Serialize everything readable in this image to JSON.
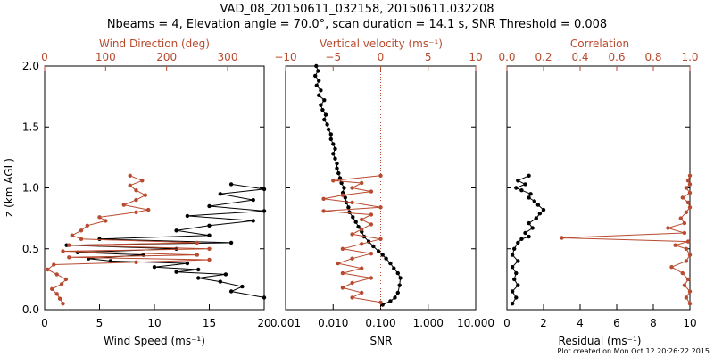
{
  "header": {
    "title_line1": "VAD_08_20150611_032158, 20150611.032208",
    "title_line2": "Nbeams = 4, Elevation angle = 70.0°, scan duration = 14.1 s, SNR Threshold = 0.008"
  },
  "footer": "Plot created on Mon Oct 12 20:26:22 2015",
  "colors": {
    "black": "#000000",
    "red": "#b84a2f"
  },
  "chart_data": [
    {
      "type": "line",
      "panel": "wind",
      "ylabel": "z (km AGL)",
      "ylim": [
        0,
        2
      ],
      "yticks": [
        "0.0",
        "0.5",
        "1.0",
        "1.5",
        "2.0"
      ],
      "xlabel_bottom": "Wind Speed (ms⁻¹)",
      "xlim_bottom": [
        0,
        20
      ],
      "xticks_bottom": [
        "0",
        "5",
        "10",
        "15",
        "20"
      ],
      "xlabel_top": "Wind Direction (deg)",
      "xlim_top": [
        0,
        360
      ],
      "xticks_top": [
        "0",
        "100",
        "200",
        "300"
      ],
      "series": [
        {
          "color": "black",
          "axis": "bottom",
          "points": [
            [
              20,
              0.1
            ],
            [
              17,
              0.15
            ],
            [
              18,
              0.19
            ],
            [
              16,
              0.23
            ],
            [
              14,
              0.26
            ],
            [
              16.5,
              0.29
            ],
            [
              12,
              0.31
            ],
            [
              14,
              0.33
            ],
            [
              10,
              0.35
            ],
            [
              13,
              0.38
            ],
            [
              6,
              0.4
            ],
            [
              4,
              0.42
            ],
            [
              9,
              0.45
            ],
            [
              3,
              0.47
            ],
            [
              12,
              0.5
            ],
            [
              2,
              0.53
            ],
            [
              17,
              0.55
            ],
            [
              5,
              0.58
            ],
            [
              15,
              0.61
            ],
            [
              12,
              0.65
            ],
            [
              15,
              0.69
            ],
            [
              19,
              0.73
            ],
            [
              13,
              0.77
            ],
            [
              20,
              0.81
            ],
            [
              15,
              0.85
            ],
            [
              19,
              0.9
            ],
            [
              16,
              0.95
            ],
            [
              20,
              0.99
            ],
            [
              17,
              1.03
            ]
          ]
        },
        {
          "color": "red",
          "axis": "top",
          "points": [
            [
              30,
              0.05
            ],
            [
              25,
              0.09
            ],
            [
              20,
              0.13
            ],
            [
              12,
              0.17
            ],
            [
              28,
              0.21
            ],
            [
              35,
              0.25
            ],
            [
              20,
              0.29
            ],
            [
              5,
              0.33
            ],
            [
              15,
              0.37
            ],
            [
              150,
              0.39
            ],
            [
              270,
              0.41
            ],
            [
              40,
              0.43
            ],
            [
              250,
              0.45
            ],
            [
              30,
              0.48
            ],
            [
              270,
              0.5
            ],
            [
              40,
              0.53
            ],
            [
              250,
              0.55
            ],
            [
              60,
              0.58
            ],
            [
              45,
              0.61
            ],
            [
              60,
              0.65
            ],
            [
              70,
              0.69
            ],
            [
              100,
              0.73
            ],
            [
              90,
              0.76
            ],
            [
              150,
              0.8
            ],
            [
              170,
              0.82
            ],
            [
              130,
              0.86
            ],
            [
              150,
              0.9
            ],
            [
              165,
              0.94
            ],
            [
              150,
              0.98
            ],
            [
              140,
              1.02
            ],
            [
              160,
              1.06
            ],
            [
              140,
              1.1
            ]
          ]
        }
      ]
    },
    {
      "type": "line",
      "panel": "snr_vertical",
      "ylim": [
        0,
        2
      ],
      "xlabel_bottom": "SNR",
      "xscale_bottom": "log",
      "xlim_bottom": [
        0.001,
        10
      ],
      "xticks_bottom": [
        "0.001",
        "0.010",
        "0.100",
        "1.000",
        "10.000"
      ],
      "xlabel_top": "Vertical velocity (ms⁻¹)",
      "xlim_top": [
        -10,
        10
      ],
      "xticks_top": [
        "−10",
        "−5",
        "0",
        "5",
        "10"
      ],
      "reference_line": {
        "axis": "top",
        "x": 0,
        "style": "dotted",
        "color": "red"
      },
      "series": [
        {
          "color": "black",
          "axis": "bottom",
          "points": [
            [
              0.11,
              0.04
            ],
            [
              0.16,
              0.07
            ],
            [
              0.2,
              0.1
            ],
            [
              0.23,
              0.14
            ],
            [
              0.25,
              0.2
            ],
            [
              0.26,
              0.26
            ],
            [
              0.23,
              0.3
            ],
            [
              0.19,
              0.34
            ],
            [
              0.16,
              0.38
            ],
            [
              0.13,
              0.42
            ],
            [
              0.11,
              0.45
            ],
            [
              0.09,
              0.48
            ],
            [
              0.07,
              0.52
            ],
            [
              0.056,
              0.56
            ],
            [
              0.045,
              0.6
            ],
            [
              0.04,
              0.64
            ],
            [
              0.034,
              0.68
            ],
            [
              0.03,
              0.72
            ],
            [
              0.026,
              0.76
            ],
            [
              0.022,
              0.8
            ],
            [
              0.021,
              0.84
            ],
            [
              0.019,
              0.88
            ],
            [
              0.018,
              0.92
            ],
            [
              0.016,
              0.96
            ],
            [
              0.017,
              1.0
            ],
            [
              0.015,
              1.04
            ],
            [
              0.014,
              1.08
            ],
            [
              0.013,
              1.12
            ],
            [
              0.012,
              1.16
            ],
            [
              0.012,
              1.2
            ],
            [
              0.011,
              1.24
            ],
            [
              0.01,
              1.28
            ],
            [
              0.011,
              1.32
            ],
            [
              0.01,
              1.36
            ],
            [
              0.009,
              1.4
            ],
            [
              0.009,
              1.44
            ],
            [
              0.008,
              1.48
            ],
            [
              0.0075,
              1.52
            ],
            [
              0.0065,
              1.56
            ],
            [
              0.007,
              1.6
            ],
            [
              0.006,
              1.64
            ],
            [
              0.0055,
              1.68
            ],
            [
              0.0065,
              1.72
            ],
            [
              0.005,
              1.76
            ],
            [
              0.0055,
              1.8
            ],
            [
              0.0045,
              1.84
            ],
            [
              0.005,
              1.88
            ],
            [
              0.0042,
              1.92
            ],
            [
              0.0048,
              1.96
            ],
            [
              0.0044,
              2.0
            ]
          ]
        },
        {
          "color": "red",
          "axis": "top",
          "points": [
            [
              0,
              0.06
            ],
            [
              -3,
              0.1
            ],
            [
              -2,
              0.14
            ],
            [
              -4,
              0.18
            ],
            [
              -3,
              0.22
            ],
            [
              -1,
              0.26
            ],
            [
              -4,
              0.3
            ],
            [
              -2,
              0.34
            ],
            [
              -4.5,
              0.38
            ],
            [
              -3,
              0.42
            ],
            [
              -1,
              0.46
            ],
            [
              -4,
              0.5
            ],
            [
              -2,
              0.54
            ],
            [
              0,
              0.58
            ],
            [
              -3,
              0.62
            ],
            [
              -2,
              0.66
            ],
            [
              -1,
              0.7
            ],
            [
              -2,
              0.74
            ],
            [
              -1,
              0.78
            ],
            [
              -6,
              0.81
            ],
            [
              0,
              0.84
            ],
            [
              -3,
              0.88
            ],
            [
              -6,
              0.91
            ],
            [
              -4,
              0.94
            ],
            [
              -1,
              0.97
            ],
            [
              -3,
              1.0
            ],
            [
              -2,
              1.04
            ],
            [
              -5,
              1.06
            ],
            [
              0,
              1.1
            ]
          ]
        }
      ]
    },
    {
      "type": "line",
      "panel": "residual_correlation",
      "ylim": [
        0,
        2
      ],
      "xlabel_bottom": "Residual (ms⁻¹)",
      "xlim_bottom": [
        0,
        10
      ],
      "xticks_bottom": [
        "0",
        "2",
        "4",
        "6",
        "8",
        "10"
      ],
      "xlabel_top": "Correlation",
      "xlim_top": [
        0,
        1
      ],
      "xticks_top": [
        "0.0",
        "0.2",
        "0.4",
        "0.6",
        "0.8",
        "1.0"
      ],
      "series": [
        {
          "color": "black",
          "axis": "bottom",
          "points": [
            [
              0.3,
              0.05
            ],
            [
              0.5,
              0.1
            ],
            [
              0.3,
              0.15
            ],
            [
              0.6,
              0.2
            ],
            [
              0.4,
              0.25
            ],
            [
              0.5,
              0.3
            ],
            [
              0.3,
              0.35
            ],
            [
              0.6,
              0.4
            ],
            [
              0.3,
              0.45
            ],
            [
              0.4,
              0.5
            ],
            [
              0.6,
              0.55
            ],
            [
              0.8,
              0.58
            ],
            [
              1.2,
              0.6
            ],
            [
              1.0,
              0.63
            ],
            [
              1.4,
              0.67
            ],
            [
              1.2,
              0.71
            ],
            [
              1.6,
              0.75
            ],
            [
              1.8,
              0.79
            ],
            [
              2.0,
              0.82
            ],
            [
              1.7,
              0.86
            ],
            [
              1.5,
              0.89
            ],
            [
              1.2,
              0.92
            ],
            [
              1.3,
              0.95
            ],
            [
              0.8,
              0.98
            ],
            [
              0.5,
              1.0
            ],
            [
              1.0,
              1.03
            ],
            [
              0.6,
              1.06
            ],
            [
              1.2,
              1.1
            ]
          ]
        },
        {
          "color": "red",
          "axis": "top",
          "points": [
            [
              1.0,
              0.05
            ],
            [
              0.98,
              0.1
            ],
            [
              1.0,
              0.15
            ],
            [
              0.97,
              0.2
            ],
            [
              0.99,
              0.25
            ],
            [
              0.96,
              0.3
            ],
            [
              0.9,
              0.35
            ],
            [
              0.98,
              0.4
            ],
            [
              1.0,
              0.45
            ],
            [
              0.98,
              0.5
            ],
            [
              0.92,
              0.53
            ],
            [
              0.99,
              0.56
            ],
            [
              0.3,
              0.59
            ],
            [
              0.97,
              0.63
            ],
            [
              0.88,
              0.67
            ],
            [
              0.97,
              0.71
            ],
            [
              0.95,
              0.75
            ],
            [
              0.98,
              0.8
            ],
            [
              1.0,
              0.84
            ],
            [
              0.99,
              0.88
            ],
            [
              0.96,
              0.92
            ],
            [
              1.0,
              0.96
            ],
            [
              0.98,
              1.0
            ],
            [
              1.0,
              1.03
            ],
            [
              0.99,
              1.06
            ],
            [
              1.0,
              1.1
            ]
          ]
        }
      ]
    }
  ]
}
